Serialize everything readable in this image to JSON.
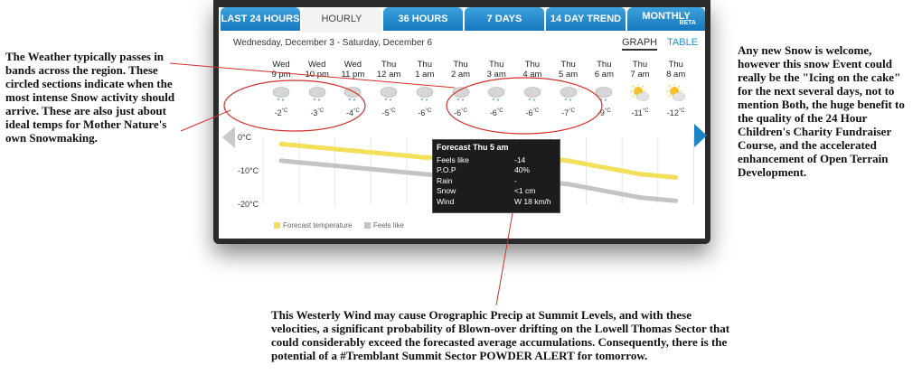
{
  "tabs": [
    {
      "label": "LAST 24 HOURS"
    },
    {
      "label": "HOURLY"
    },
    {
      "label": "36 HOURS"
    },
    {
      "label": "7 DAYS"
    },
    {
      "label": "14 DAY TREND"
    },
    {
      "label": "MONTHLY",
      "badge": "BETA"
    }
  ],
  "date_range": "Wednesday, December 3 - Saturday, December 6",
  "view_toggle": {
    "graph": "GRAPH",
    "table": "TABLE"
  },
  "hours": [
    {
      "day": "Wed",
      "time": "9 pm",
      "temp": "-2",
      "unit": "°C",
      "icon": "snow-cloud-icon"
    },
    {
      "day": "Wed",
      "time": "10 pm",
      "temp": "-3",
      "unit": "°C",
      "icon": "snow-cloud-icon"
    },
    {
      "day": "Wed",
      "time": "11 pm",
      "temp": "-4",
      "unit": "°C",
      "icon": "snow-cloud-icon"
    },
    {
      "day": "Thu",
      "time": "12 am",
      "temp": "-5",
      "unit": "°C",
      "icon": "snow-cloud-icon"
    },
    {
      "day": "Thu",
      "time": "1 am",
      "temp": "-6",
      "unit": "°C",
      "icon": "snow-cloud-icon"
    },
    {
      "day": "Thu",
      "time": "2 am",
      "temp": "-6",
      "unit": "°C",
      "icon": "snow-cloud-icon"
    },
    {
      "day": "Thu",
      "time": "3 am",
      "temp": "-6",
      "unit": "°C",
      "icon": "snow-cloud-icon"
    },
    {
      "day": "Thu",
      "time": "4 am",
      "temp": "-6",
      "unit": "°C",
      "icon": "snow-cloud-icon"
    },
    {
      "day": "Thu",
      "time": "5 am",
      "temp": "-7",
      "unit": "°C",
      "icon": "snow-cloud-icon"
    },
    {
      "day": "Thu",
      "time": "6 am",
      "temp": "-9",
      "unit": "°C",
      "icon": "snow-cloud-icon"
    },
    {
      "day": "Thu",
      "time": "7 am",
      "temp": "-11",
      "unit": "°C",
      "icon": "sun-cloud-icon"
    },
    {
      "day": "Thu",
      "time": "8 am",
      "temp": "-12",
      "unit": "°C",
      "icon": "sun-cloud-icon"
    }
  ],
  "chart_data": {
    "type": "line",
    "x": [
      "Wed 9 pm",
      "Wed 10 pm",
      "Wed 11 pm",
      "Thu 12 am",
      "Thu 1 am",
      "Thu 2 am",
      "Thu 3 am",
      "Thu 4 am",
      "Thu 5 am",
      "Thu 6 am",
      "Thu 7 am",
      "Thu 8 am"
    ],
    "ylim": [
      -20,
      0
    ],
    "yticks": [
      "0°C",
      "-10°C",
      "-20°C"
    ],
    "series": [
      {
        "name": "Forecast temperature",
        "color": "#f2df5a",
        "values": [
          -2,
          -3,
          -4,
          -5,
          -6,
          -6,
          -6,
          -6,
          -7,
          -9,
          -11,
          -12
        ]
      },
      {
        "name": "Feels like",
        "color": "#c4c4c4",
        "values": [
          -7,
          -8,
          -9,
          -10,
          -11,
          -12,
          -12,
          -13,
          -14,
          -16,
          -18,
          -19
        ]
      }
    ]
  },
  "tooltip": {
    "title": "Forecast Thu 5 am",
    "rows": [
      {
        "label": "Feels like",
        "value": "-14"
      },
      {
        "label": "P.O.P",
        "value": "40%"
      },
      {
        "label": "Rain",
        "value": "-"
      },
      {
        "label": "Snow",
        "value": "<1 cm"
      },
      {
        "label": "Wind",
        "value": "W 18 km/h"
      }
    ]
  },
  "annotations": {
    "left": "The Weather typically passes in bands across the region. These circled sections indicate when the most intense Snow activity should arrive. These are also just about ideal temps for Mother Nature's own Snowmaking.",
    "right": "Any new Snow is welcome, however this snow Event could really be the \"Icing on the cake\" for the next several days, not to mention Both, the huge benefit to the quality of the 24 Hour Children's Charity Fundraiser Course, and the accelerated enhancement of Open Terrain Development.",
    "bottom": "This Westerly Wind may cause Orographic Precip at Summit Levels, and with these velocities, a significant probability of Blown-over drifting on the Lowell Thomas Sector that could considerably exceed the forecasted average accumulations. Consequently, there is the potential of a #Tremblant Summit Sector POWDER ALERT for tomorrow."
  },
  "colors": {
    "accent": "#1a84c7",
    "annotation_red": "#d0312d"
  }
}
